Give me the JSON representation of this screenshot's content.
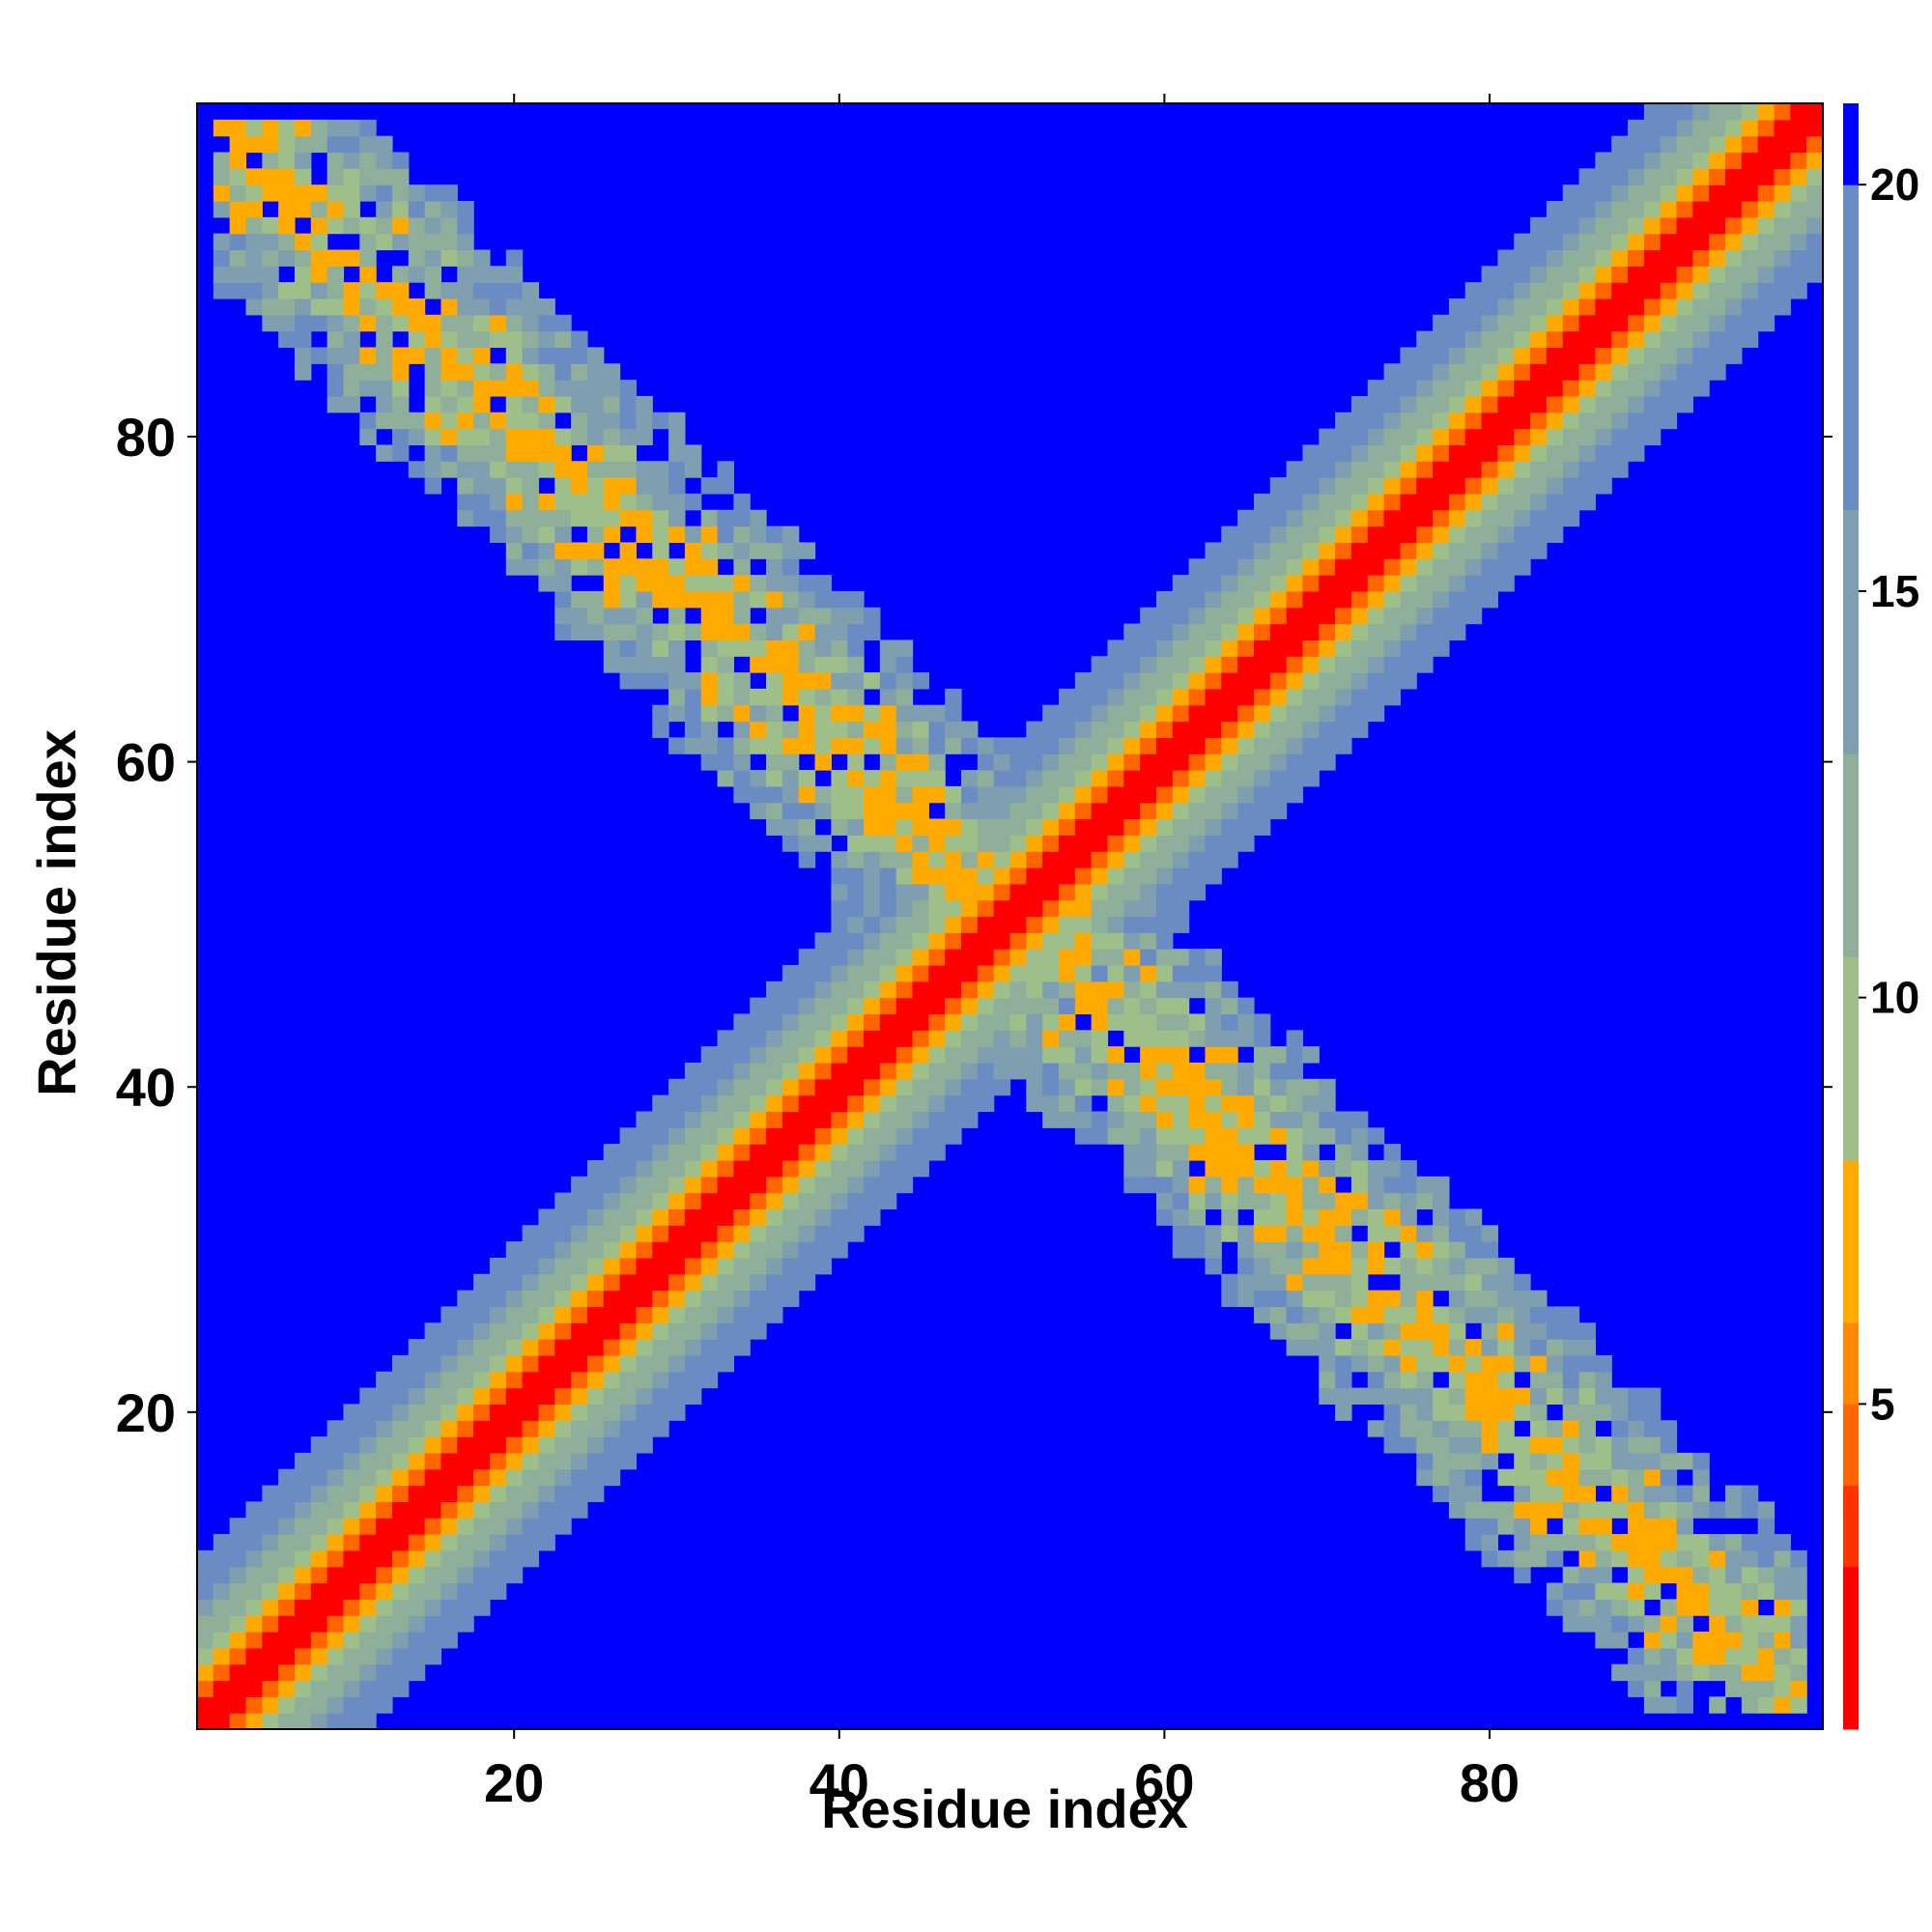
{
  "chart_data": {
    "type": "heatmap",
    "title": "",
    "xlabel": "Residue index",
    "ylabel": "Residue index",
    "xlim": [
      1,
      100
    ],
    "ylim": [
      1,
      100
    ],
    "x_ticks": [
      20,
      40,
      60,
      80
    ],
    "y_ticks": [
      20,
      40,
      60,
      80
    ],
    "colorbar": {
      "range": [
        1,
        21
      ],
      "ticks": [
        5,
        10,
        15,
        20
      ],
      "colors": [
        "#ff0000",
        "#ff3300",
        "#ff6600",
        "#ff8800",
        "#ffaa00",
        "#9fbf8a",
        "#8faf9a",
        "#7f9fb0",
        "#6a8cc2",
        "#0000ff"
      ],
      "boundaries": [
        1,
        3,
        4,
        5,
        6,
        8,
        10.5,
        13,
        16,
        20,
        21
      ]
    },
    "description_of_values": "Pairwise distance map between residues i and j (symmetric). Small values along the main diagonal |i-j| small; second anti-diagonal band near i+j≈101 with values 6–18; elsewhere ≥20.",
    "diagonal_profile": [
      {
        "offset": 0,
        "value": 1
      },
      {
        "offset": 1,
        "value": 2
      },
      {
        "offset": 2,
        "value": 4.5
      },
      {
        "offset": 3,
        "value": 7
      },
      {
        "offset": 4,
        "value": 9
      },
      {
        "offset": 5,
        "value": 11
      },
      {
        "offset": 6,
        "value": 12.5
      },
      {
        "offset": 7,
        "value": 14
      },
      {
        "offset": 8,
        "value": 16
      },
      {
        "offset": 9,
        "value": 17.5
      },
      {
        "offset": 10,
        "value": 19
      }
    ],
    "antidiagonal_band": {
      "sum": 101,
      "half_width": 9,
      "value_range": [
        6,
        18
      ],
      "extent_x": [
        2,
        99
      ]
    },
    "background_value": 21
  }
}
